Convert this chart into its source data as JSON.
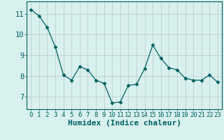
{
  "x": [
    0,
    1,
    2,
    3,
    4,
    5,
    6,
    7,
    8,
    9,
    10,
    11,
    12,
    13,
    14,
    15,
    16,
    17,
    18,
    19,
    20,
    21,
    22,
    23
  ],
  "y": [
    11.2,
    10.9,
    10.35,
    9.4,
    8.05,
    7.8,
    8.45,
    8.3,
    7.8,
    7.65,
    6.7,
    6.75,
    7.55,
    7.6,
    8.35,
    9.5,
    8.85,
    8.4,
    8.3,
    7.9,
    7.8,
    7.8,
    8.05,
    7.7
  ],
  "line_color": "#006060",
  "marker": "D",
  "marker_size": 2.5,
  "bg_color": "#d8f0ee",
  "grid_color_major": "#b8c8c8",
  "grid_color_minor": "#c8dada",
  "xlabel": "Humidex (Indice chaleur)",
  "xlabel_fontsize": 8,
  "ylabel_ticks": [
    7,
    8,
    9,
    10,
    11
  ],
  "xtick_labels": [
    "0",
    "1",
    "2",
    "3",
    "4",
    "5",
    "6",
    "7",
    "8",
    "9",
    "10",
    "11",
    "12",
    "13",
    "14",
    "15",
    "16",
    "17",
    "18",
    "19",
    "20",
    "21",
    "22",
    "23"
  ],
  "ylim": [
    6.4,
    11.6
  ],
  "xlim": [
    -0.5,
    23.5
  ],
  "tick_color": "#006060",
  "tick_fontsize": 6.5,
  "axis_color": "#006060",
  "linewidth": 0.9
}
